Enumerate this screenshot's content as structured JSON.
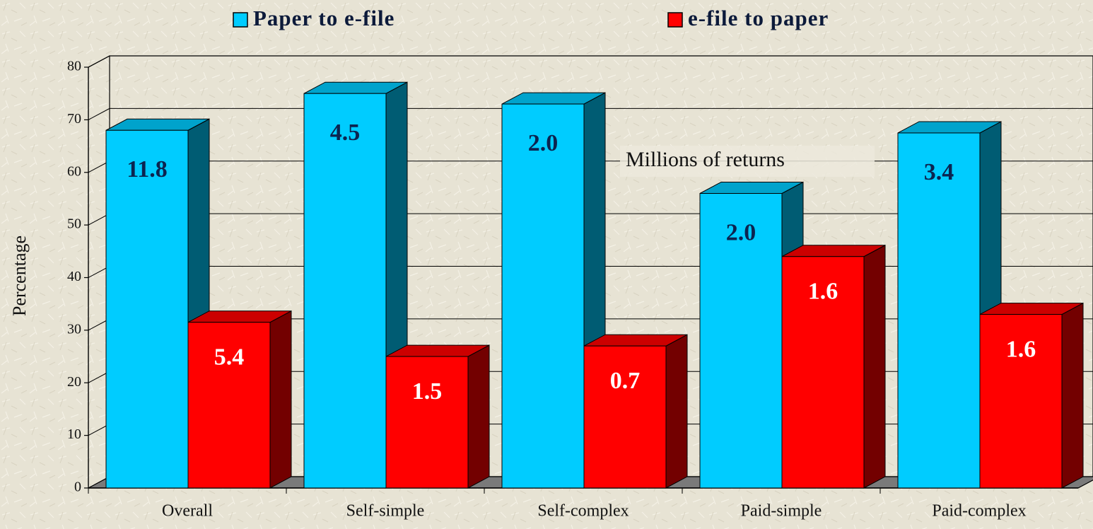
{
  "chart_data": {
    "type": "bar3d",
    "y_label": "Percentage",
    "annotation": "Millions of returns",
    "categories": [
      "Overall",
      "Self-simple",
      "Self-complex",
      "Paid-simple",
      "Paid-complex"
    ],
    "series": [
      {
        "name": "Paper to e-file",
        "color": "#00ccff",
        "values": [
          68,
          75,
          73,
          56,
          67.5
        ],
        "labels": [
          "11.8",
          "4.5",
          "2.0",
          "2.0",
          "3.4"
        ]
      },
      {
        "name": "e-file to paper",
        "color": "#ff0000",
        "values": [
          31.5,
          25,
          27,
          44,
          33
        ],
        "labels": [
          "5.4",
          "1.5",
          "0.7",
          "1.6",
          "1.6"
        ]
      }
    ],
    "ylim": [
      0,
      80
    ],
    "yticks": [
      0,
      10,
      20,
      30,
      40,
      50,
      60,
      70,
      80
    ],
    "grid": true,
    "legend": "top"
  }
}
